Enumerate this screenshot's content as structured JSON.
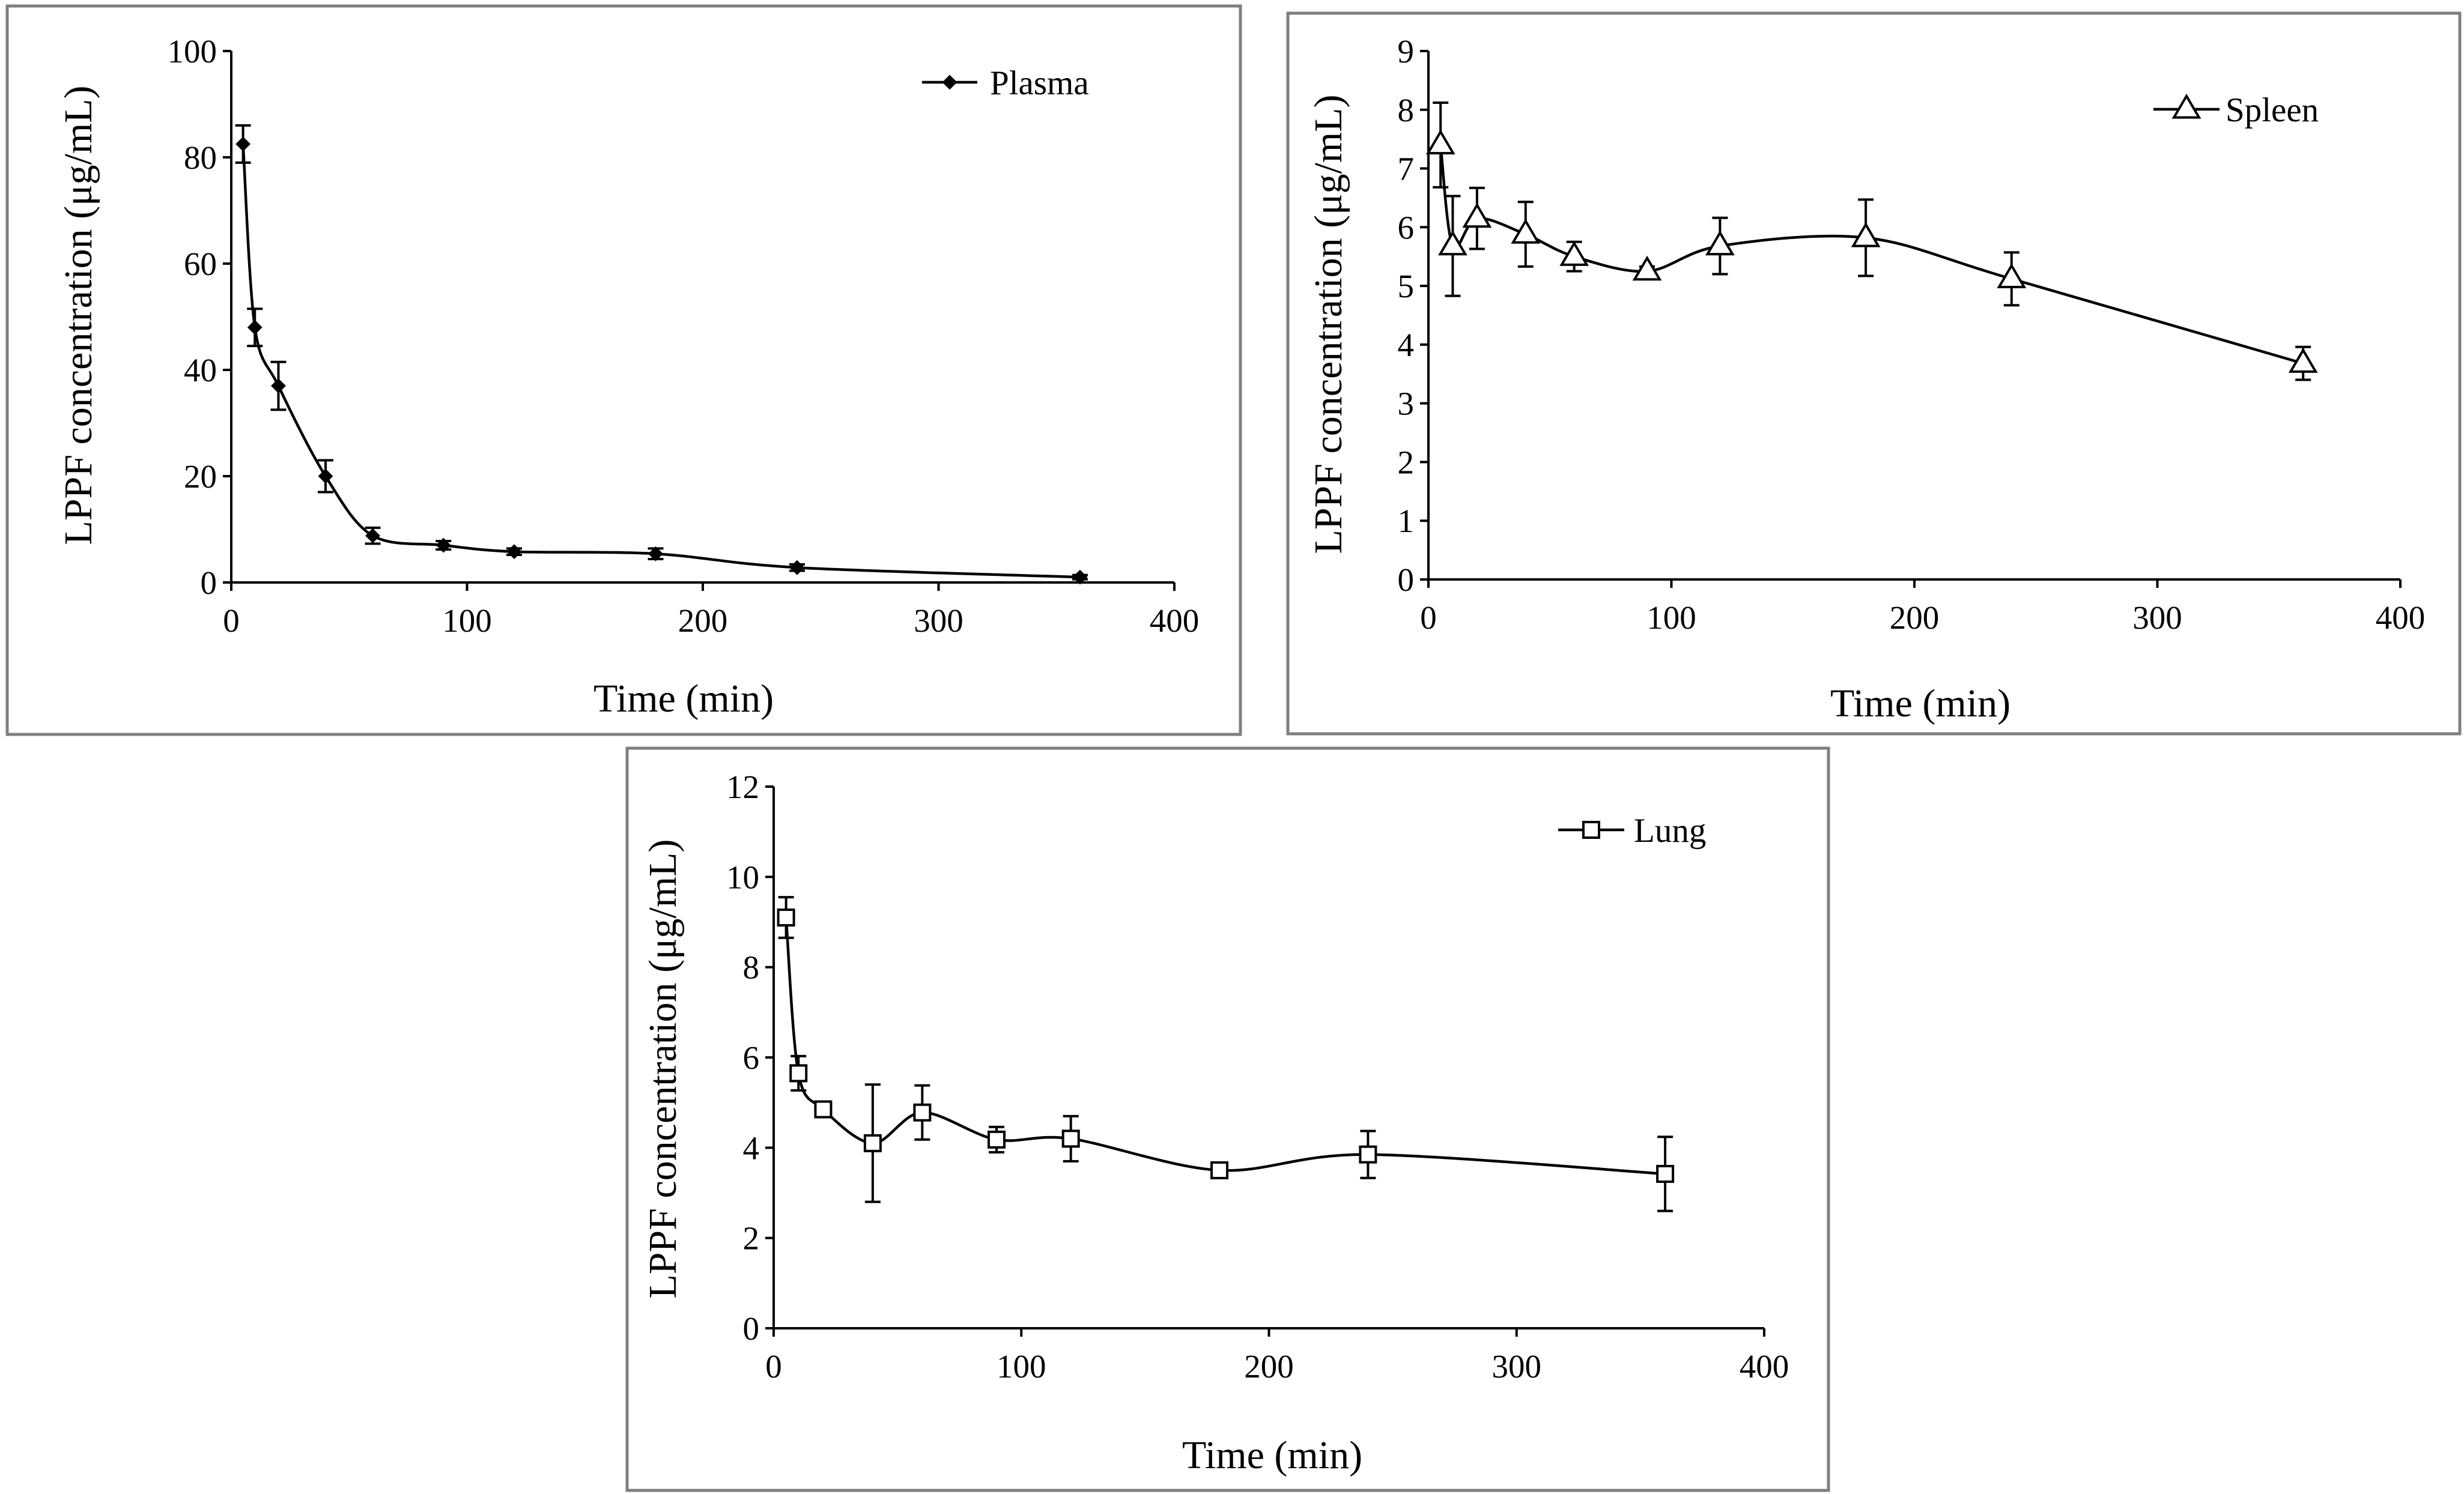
{
  "chart_data": [
    {
      "type": "line",
      "xlabel": "Time (min)",
      "ylabel": "LPPF concentration (μg/mL)",
      "xlim": [
        0,
        400
      ],
      "ylim": [
        0,
        100
      ],
      "x_ticks": [
        "0",
        "100",
        "200",
        "300",
        "400"
      ],
      "y_ticks": [
        "0",
        "20",
        "40",
        "60",
        "80",
        "100"
      ],
      "grid": false,
      "legend_position": "top-right",
      "series": [
        {
          "name": "Plasma",
          "marker": "diamond",
          "x": [
            5,
            10,
            20,
            40,
            60,
            90,
            120,
            180,
            240,
            360
          ],
          "y": [
            82.5,
            48.0,
            37.0,
            20.0,
            8.8,
            7.0,
            5.8,
            5.4,
            2.8,
            1.0
          ],
          "error": [
            3.5,
            3.5,
            4.5,
            3.0,
            1.5,
            0.8,
            0.6,
            1.0,
            0.6,
            0.4
          ]
        }
      ]
    },
    {
      "type": "line",
      "xlabel": "Time (min)",
      "ylabel": "LPPF concentration (μg/mL)",
      "xlim": [
        0,
        400
      ],
      "ylim": [
        0,
        9
      ],
      "x_ticks": [
        "0",
        "100",
        "200",
        "300",
        "400"
      ],
      "y_ticks": [
        "0",
        "1",
        "2",
        "3",
        "4",
        "5",
        "6",
        "7",
        "8",
        "9"
      ],
      "grid": false,
      "legend_position": "top-right",
      "series": [
        {
          "name": "Spleen",
          "marker": "triangle",
          "x": [
            5,
            10,
            20,
            40,
            60,
            90,
            120,
            180,
            240,
            360
          ],
          "y": [
            7.4,
            5.68,
            6.15,
            5.88,
            5.5,
            5.25,
            5.68,
            5.82,
            5.12,
            3.68
          ],
          "error": [
            0.72,
            0.85,
            0.52,
            0.55,
            0.25,
            0.08,
            0.48,
            0.65,
            0.45,
            0.28
          ]
        }
      ]
    },
    {
      "type": "line",
      "xlabel": "Time (min)",
      "ylabel": "LPPF concentration (μg/mL)",
      "xlim": [
        0,
        400
      ],
      "ylim": [
        0,
        12
      ],
      "x_ticks": [
        "0",
        "100",
        "200",
        "300",
        "400"
      ],
      "y_ticks": [
        "0",
        "2",
        "4",
        "6",
        "8",
        "10",
        "12"
      ],
      "grid": false,
      "legend_position": "top-right",
      "series": [
        {
          "name": "Lung",
          "marker": "square",
          "x": [
            5,
            10,
            20,
            40,
            60,
            90,
            120,
            180,
            240,
            360
          ],
          "y": [
            9.1,
            5.65,
            4.85,
            4.1,
            4.78,
            4.18,
            4.2,
            3.5,
            3.85,
            3.42
          ],
          "error": [
            0.45,
            0.38,
            0.12,
            1.3,
            0.6,
            0.28,
            0.5,
            0.1,
            0.52,
            0.82
          ]
        }
      ]
    }
  ]
}
